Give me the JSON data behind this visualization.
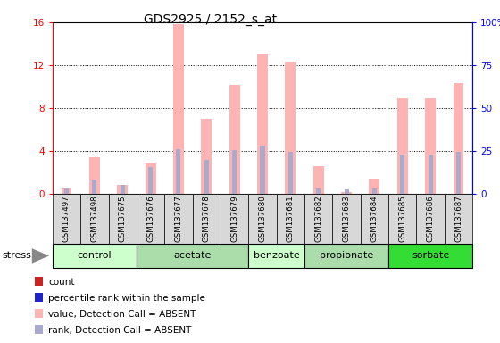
{
  "title": "GDS2925 / 2152_s_at",
  "samples": [
    "GSM137497",
    "GSM137498",
    "GSM137675",
    "GSM137676",
    "GSM137677",
    "GSM137678",
    "GSM137679",
    "GSM137680",
    "GSM137681",
    "GSM137682",
    "GSM137683",
    "GSM137684",
    "GSM137685",
    "GSM137686",
    "GSM137687"
  ],
  "groups": [
    {
      "name": "control",
      "indices": [
        0,
        1,
        2
      ],
      "color": "#ccffcc"
    },
    {
      "name": "acetate",
      "indices": [
        3,
        4,
        5,
        6
      ],
      "color": "#aaddaa"
    },
    {
      "name": "benzoate",
      "indices": [
        7,
        8
      ],
      "color": "#ccffcc"
    },
    {
      "name": "propionate",
      "indices": [
        9,
        10,
        11
      ],
      "color": "#aaddaa"
    },
    {
      "name": "sorbate",
      "indices": [
        12,
        13,
        14
      ],
      "color": "#33dd33"
    }
  ],
  "value_absent": [
    0.5,
    3.4,
    0.8,
    2.8,
    15.8,
    7.0,
    10.2,
    13.0,
    12.3,
    2.6,
    0.2,
    1.4,
    8.9,
    8.9,
    10.3
  ],
  "rank_absent": [
    0.5,
    1.3,
    0.8,
    2.5,
    4.2,
    3.2,
    4.1,
    4.5,
    3.9,
    0.5,
    0.4,
    0.5,
    3.7,
    3.7,
    3.9
  ],
  "ylim_left": [
    0,
    16
  ],
  "ylim_right": [
    0,
    100
  ],
  "yticks_left": [
    0,
    4,
    8,
    12,
    16
  ],
  "yticks_right": [
    0,
    25,
    50,
    75,
    100
  ],
  "ytick_labels_right": [
    "0",
    "25",
    "50",
    "75",
    "100%"
  ],
  "color_value_absent": "#ffb3b3",
  "color_rank_absent": "#aaaacc",
  "plot_bg": "#ffffff",
  "tick_bg": "#d8d8d8",
  "legend_items": [
    {
      "color": "#cc2222",
      "label": "count"
    },
    {
      "color": "#2222cc",
      "label": "percentile rank within the sample"
    },
    {
      "color": "#ffb3b3",
      "label": "value, Detection Call = ABSENT"
    },
    {
      "color": "#aaaacc",
      "label": "rank, Detection Call = ABSENT"
    }
  ]
}
